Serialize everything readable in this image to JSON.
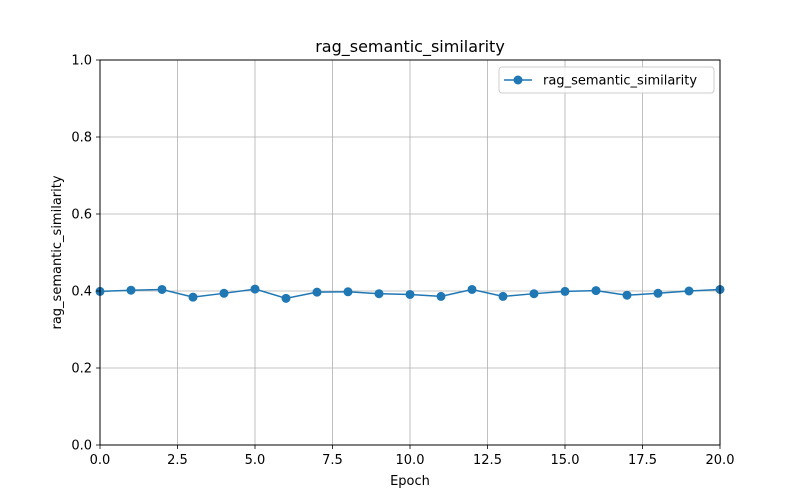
{
  "chart_data": {
    "type": "line",
    "title": "rag_semantic_similarity",
    "xlabel": "Epoch",
    "ylabel": "rag_semantic_similarity",
    "xlim": [
      0,
      20
    ],
    "ylim": [
      0,
      1
    ],
    "xticks": [
      0,
      2.5,
      5,
      7.5,
      10,
      12.5,
      15,
      17.5,
      20
    ],
    "xtick_labels": [
      "0.0",
      "2.5",
      "5.0",
      "7.5",
      "10.0",
      "12.5",
      "15.0",
      "17.5",
      "20.0"
    ],
    "yticks": [
      0,
      0.2,
      0.4,
      0.6,
      0.8,
      1.0
    ],
    "ytick_labels": [
      "0.0",
      "0.2",
      "0.4",
      "0.6",
      "0.8",
      "1.0"
    ],
    "grid": true,
    "legend_position": "top-right",
    "series": [
      {
        "name": "rag_semantic_similarity",
        "color": "#1f77b4",
        "marker": "circle",
        "x": [
          0,
          1,
          2,
          3,
          4,
          5,
          6,
          7,
          8,
          9,
          10,
          11,
          12,
          13,
          14,
          15,
          16,
          17,
          18,
          19,
          20
        ],
        "y": [
          0.399,
          0.402,
          0.404,
          0.384,
          0.394,
          0.405,
          0.381,
          0.397,
          0.398,
          0.393,
          0.391,
          0.386,
          0.404,
          0.386,
          0.393,
          0.399,
          0.401,
          0.389,
          0.394,
          0.4,
          0.404
        ]
      }
    ]
  }
}
